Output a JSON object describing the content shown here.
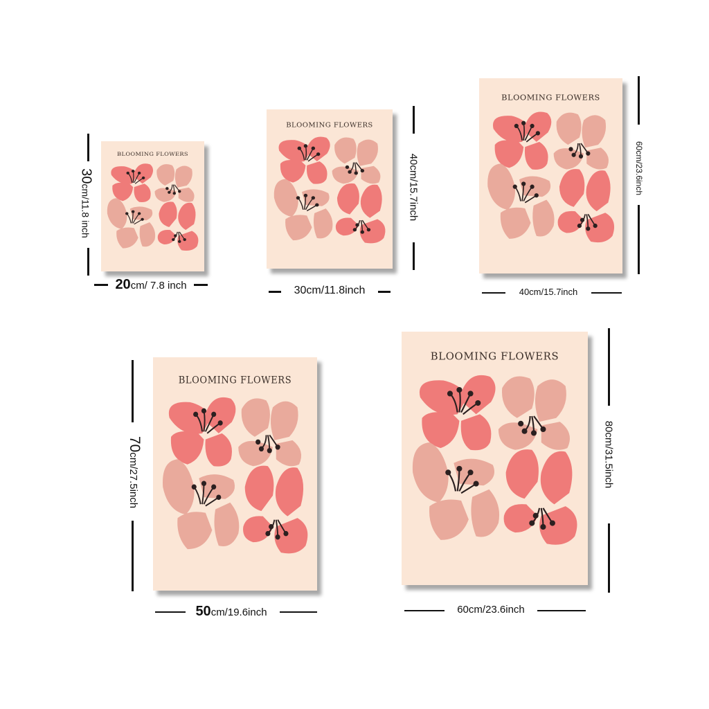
{
  "poster_title": "BLOOMING FLOWERS",
  "colors": {
    "background": "#fbe6d6",
    "petal_dark": "#ef7b79",
    "petal_light": "#e9aa9c",
    "stamen": "#2b2020"
  },
  "sizes": [
    {
      "width_big": "20",
      "width_rest": "cm/ 7.8 inch",
      "height_big": "30",
      "height_rest": "cm/11.8 inch"
    },
    {
      "width_big": "",
      "width_rest": "30cm/11.8inch",
      "height_big": "",
      "height_rest": "40cm/15.7inch"
    },
    {
      "width_big": "",
      "width_rest": "40cm/15.7inch",
      "height_big": "",
      "height_rest": "60cm/23.6inch"
    },
    {
      "width_big": "50",
      "width_rest": "cm/19.6inch",
      "height_big": "70",
      "height_rest": "cm/27.5inch"
    },
    {
      "width_big": "",
      "width_rest": "60cm/23.6inch",
      "height_big": "",
      "height_rest": "80cm/31.5inch"
    }
  ]
}
